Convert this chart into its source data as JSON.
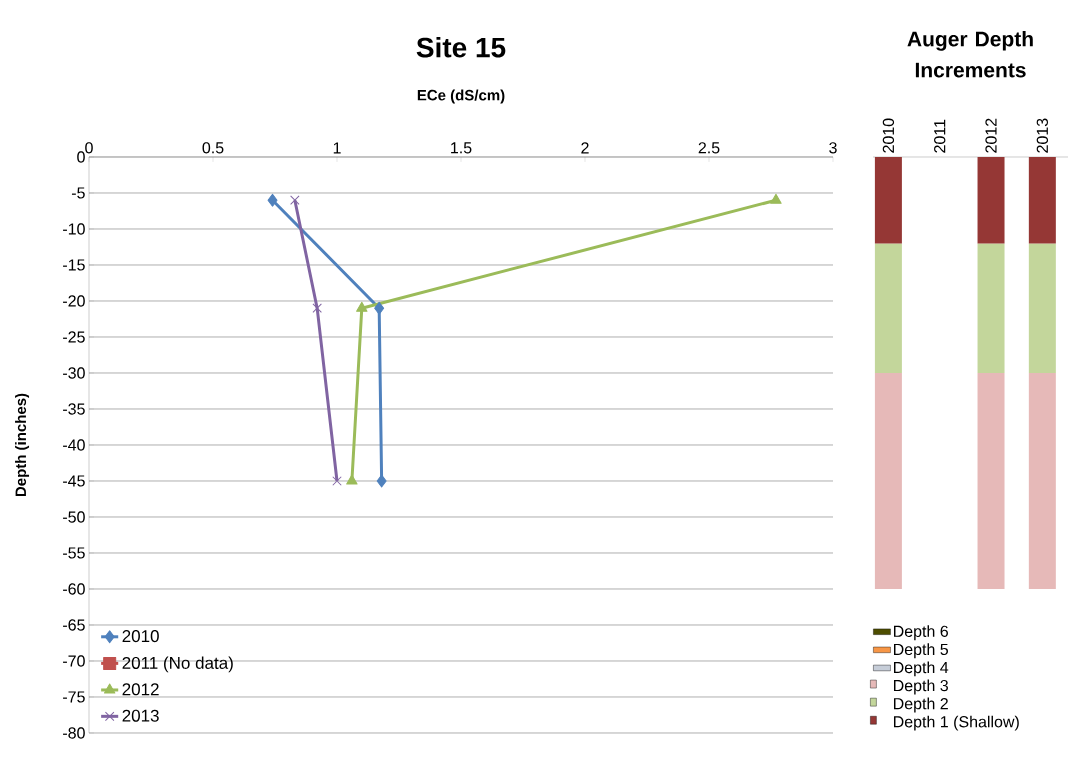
{
  "chart_data": [
    {
      "type": "line",
      "title": "Site 15",
      "xlabel": "ECe (dS/cm)",
      "ylabel": "Depth (inches)",
      "xlim": [
        0,
        3
      ],
      "ylim": [
        -80,
        0
      ],
      "xticks": [
        0,
        0.5,
        1,
        1.5,
        2,
        2.5,
        3
      ],
      "yticks": [
        0,
        -5,
        -10,
        -15,
        -20,
        -25,
        -30,
        -35,
        -40,
        -45,
        -50,
        -55,
        -60,
        -65,
        -70,
        -75,
        -80
      ],
      "grid": "y",
      "legend": "bottom left",
      "series": [
        {
          "name": "2010",
          "color": "#4f81bd",
          "marker": "diamond",
          "x": [
            0.74,
            1.17,
            1.18
          ],
          "values": [
            -6,
            -21,
            -45
          ]
        },
        {
          "name": "2011  (No data)",
          "color": "#c0504d",
          "marker": "square",
          "x": [
            null,
            null,
            null
          ],
          "values": [
            null,
            null,
            null
          ]
        },
        {
          "name": "2012",
          "color": "#9bbb59",
          "marker": "triangle",
          "x": [
            2.77,
            1.1,
            1.06
          ],
          "values": [
            -6,
            -21,
            -45
          ]
        },
        {
          "name": "2013",
          "color": "#8064a2",
          "marker": "cross",
          "x": [
            0.83,
            0.92,
            1.0
          ],
          "values": [
            -6,
            -21,
            -45
          ]
        }
      ]
    },
    {
      "type": "bar",
      "stacked": true,
      "title": "Auger Depth Increments",
      "categories": [
        "2010",
        "2011",
        "2012",
        "2013"
      ],
      "ylim": [
        -80,
        0
      ],
      "tick_labels": "x",
      "legend": "bottom",
      "series": [
        {
          "name": "Depth 1 (Shallow)",
          "color": "#953735",
          "values": [
            -12,
            null,
            -12,
            -12
          ]
        },
        {
          "name": "Depth 2",
          "color": "#c3d69b",
          "values": [
            -18,
            null,
            -18,
            -18
          ]
        },
        {
          "name": "Depth 3",
          "color": "#e6b9b8",
          "values": [
            -30,
            null,
            -30,
            -30
          ]
        },
        {
          "name": "Depth 4",
          "color": "#c6cdd8",
          "values": [
            null,
            null,
            null,
            null
          ]
        },
        {
          "name": "Depth 5",
          "color": "#f79646",
          "values": [
            null,
            null,
            null,
            null
          ]
        },
        {
          "name": "Depth 6",
          "color": "#4d4d00",
          "values": [
            null,
            null,
            null,
            null
          ]
        }
      ]
    }
  ]
}
